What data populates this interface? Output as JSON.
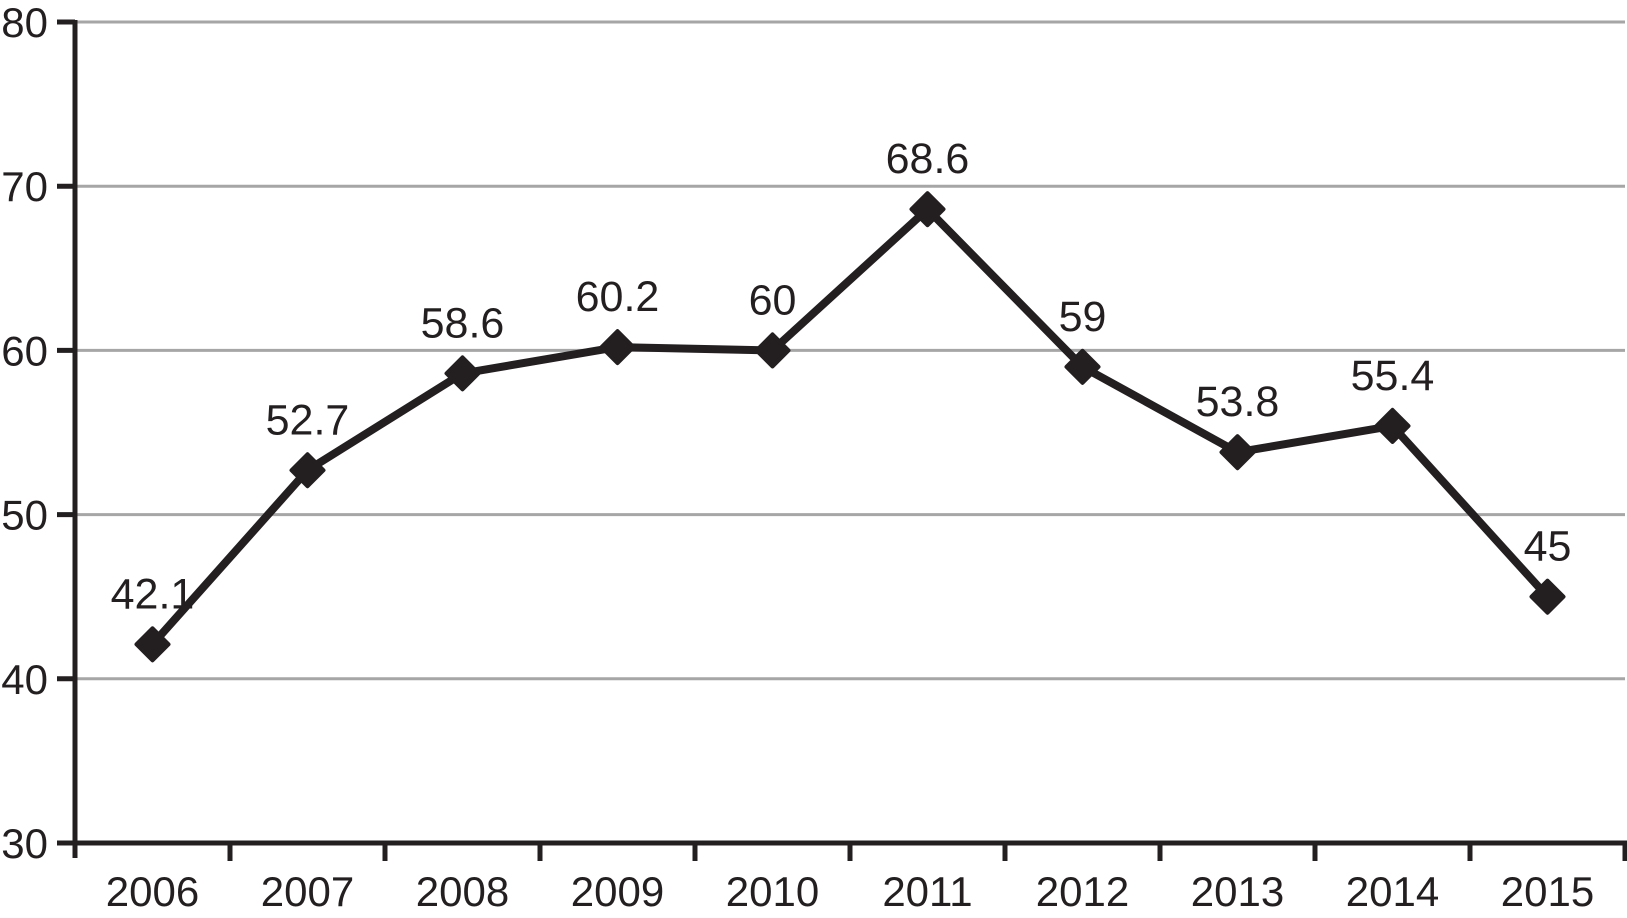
{
  "chart_data": {
    "type": "line",
    "title": "",
    "xlabel": "",
    "ylabel": "",
    "categories": [
      "2006",
      "2007",
      "2008",
      "2009",
      "2010",
      "2011",
      "2012",
      "2013",
      "2014",
      "2015"
    ],
    "series": [
      {
        "name": "value",
        "values": [
          42.1,
          52.7,
          58.6,
          60.2,
          60,
          68.6,
          59,
          53.8,
          55.4,
          45
        ],
        "point_labels": [
          "42.1",
          "52.7",
          "58.6",
          "60.2",
          "60",
          "68.6",
          "59",
          "53.8",
          "55.4",
          "45"
        ]
      }
    ],
    "ylim": [
      30,
      80
    ],
    "y_ticks": [
      30,
      40,
      50,
      60,
      70,
      80
    ],
    "grid": "horizontal",
    "legend": "none",
    "marker": "diamond",
    "colors": {
      "line": "#231f20",
      "marker": "#231f20",
      "grid": "#a6a6a6",
      "axis": "#231f20",
      "text": "#231f20",
      "background": "#ffffff"
    }
  }
}
